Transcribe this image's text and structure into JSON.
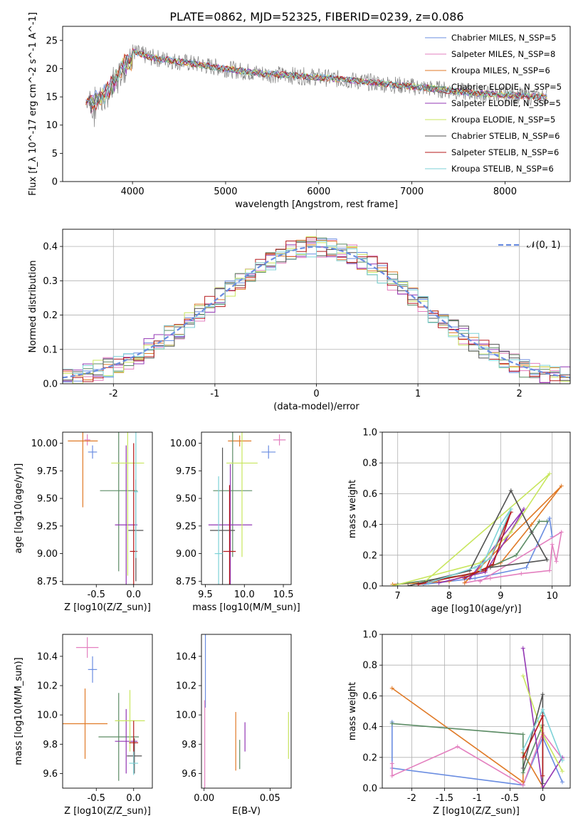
{
  "figure_title": "PLATE=0862, MJD=52325, FIBERID=0239, z=0.086",
  "series_colors": [
    "#6a8de1",
    "#e37fbf",
    "#e07a27",
    "#5c8c65",
    "#9337b4",
    "#c8e65e",
    "#525252",
    "#b5191b",
    "#7dd2d7"
  ],
  "legend_spectrum": [
    "Chabrier MILES, N_SSP=5",
    "Salpeter MILES, N_SSP=8",
    "Kroupa MILES, N_SSP=6",
    "Chabrier ELODIE, N_SSP=5",
    "Salpeter ELODIE, N_SSP=5",
    "Kroupa ELODIE, N_SSP=5",
    "Chabrier STELIB, N_SSP=6",
    "Salpeter STELIB, N_SSP=6",
    "Kroupa STELIB, N_SSP=6"
  ],
  "legend_hist": "𝒩(0, 1)",
  "chart_data": [
    {
      "type": "line",
      "title": "PLATE=0862, MJD=52325, FIBERID=0239, z=0.086",
      "xlabel": "wavelength [Angstrom, rest frame]",
      "ylabel": "Flux [f_λ 10^-17 erg cm^-2 s^-1 A^-1]",
      "xlim": [
        3250,
        8700
      ],
      "ylim": [
        0,
        27.5
      ],
      "xticks": [
        4000,
        5000,
        6000,
        7000,
        8000
      ],
      "yticks": [
        0,
        5,
        10,
        15,
        20,
        25
      ],
      "data_continuum": {
        "x": [
          3500,
          3600,
          3700,
          3800,
          3900,
          4000,
          4100,
          4200,
          4400,
          4600,
          4800,
          5000,
          5200,
          5500,
          5800,
          6000,
          6300,
          6600,
          6900,
          7200,
          7500,
          7800,
          8100,
          8400
        ],
        "y": [
          14,
          16,
          17,
          19,
          22,
          23,
          22.5,
          22,
          21.5,
          21,
          20.5,
          20,
          19.5,
          19,
          18.7,
          18.5,
          18,
          17.5,
          17,
          16.5,
          16,
          15.5,
          15.3,
          15
        ]
      },
      "grid": false,
      "legend": "top-right"
    },
    {
      "type": "line",
      "xlabel": "(data-model)/error",
      "ylabel": "Normed distribution",
      "xlim": [
        -2.5,
        2.5
      ],
      "ylim": [
        0,
        0.45
      ],
      "xticks": [
        -2,
        -1,
        0,
        1,
        2
      ],
      "yticks": [
        0.0,
        0.1,
        0.2,
        0.3,
        0.4
      ],
      "normal_curve": {
        "mean": 0,
        "sigma": 1
      },
      "grid": true,
      "legend": "top-right"
    },
    {
      "type": "scatter",
      "xlabel": "Z [log10(Z/Z_sun)]",
      "ylabel": "age [log10(age/yr)]",
      "xlim": [
        -0.95,
        0.25
      ],
      "ylim": [
        8.72,
        10.1
      ],
      "xticks": [
        -0.5,
        0.0
      ],
      "yticks": [
        8.75,
        9.0,
        9.25,
        9.5,
        9.75,
        10.0
      ],
      "points": [
        {
          "x": -0.55,
          "y": 9.92,
          "xerr": 0.06,
          "yerr": 0.06
        },
        {
          "x": -0.62,
          "y": 10.03,
          "xerr": 0.04,
          "yerr": 0.05
        },
        {
          "x": -0.68,
          "y": 10.02,
          "xerr": 0.2,
          "yerr": 0.6
        },
        {
          "x": -0.2,
          "y": 9.57,
          "xerr": 0.25,
          "yerr": 0.73
        },
        {
          "x": -0.1,
          "y": 9.26,
          "xerr": 0.15,
          "yerr": 0.72
        },
        {
          "x": -0.08,
          "y": 9.82,
          "xerr": 0.22,
          "yerr": 1.02
        },
        {
          "x": 0.03,
          "y": 9.21,
          "xerr": 0.1,
          "yerr": 0.46
        },
        {
          "x": 0.0,
          "y": 9.02,
          "xerr": 0.05,
          "yerr": 0.98
        },
        {
          "x": 0.03,
          "y": 9.56,
          "xerr": 0.03,
          "yerr": 0.6
        }
      ]
    },
    {
      "type": "scatter",
      "xlabel": "mass [log10(M/M_sun)]",
      "ylabel": "",
      "xlim": [
        9.45,
        10.6
      ],
      "ylim": [
        8.72,
        10.1
      ],
      "xticks": [
        9.5,
        10.0,
        10.5
      ],
      "yticks": [
        8.75,
        9.0,
        9.25,
        9.5,
        9.75,
        10.0
      ],
      "points": [
        {
          "x": 10.31,
          "y": 9.92,
          "xerr": 0.09,
          "yerr": 0.06
        },
        {
          "x": 10.45,
          "y": 10.03,
          "xerr": 0.08,
          "yerr": 0.05
        },
        {
          "x": 9.94,
          "y": 10.02,
          "xerr": 0.15,
          "yerr": 0.05
        },
        {
          "x": 9.85,
          "y": 9.57,
          "xerr": 0.25,
          "yerr": 0.6
        },
        {
          "x": 9.82,
          "y": 9.26,
          "xerr": 0.28,
          "yerr": 0.55
        },
        {
          "x": 9.97,
          "y": 9.82,
          "xerr": 0.2,
          "yerr": 0.85
        },
        {
          "x": 9.72,
          "y": 9.21,
          "xerr": 0.16,
          "yerr": 0.75
        },
        {
          "x": 9.81,
          "y": 9.02,
          "xerr": 0.08,
          "yerr": 0.6
        },
        {
          "x": 9.67,
          "y": 9.0,
          "xerr": 0.05,
          "yerr": 0.7
        }
      ]
    },
    {
      "type": "line",
      "xlabel": "age [log10(age/yr)]",
      "ylabel": "mass weight",
      "xlim": [
        6.7,
        10.35
      ],
      "ylim": [
        0,
        1.0
      ],
      "xticks": [
        7,
        8,
        9,
        10
      ],
      "yticks": [
        0.0,
        0.2,
        0.4,
        0.6,
        0.8,
        1.0
      ],
      "grid": true,
      "series": [
        {
          "values": [
            [
              7.5,
              0.01
            ],
            [
              8.5,
              0.05
            ],
            [
              9.5,
              0.12
            ],
            [
              9.95,
              0.44
            ],
            [
              10.0,
              0.32
            ]
          ]
        },
        {
          "values": [
            [
              8.3,
              0.02
            ],
            [
              8.8,
              0.05
            ],
            [
              9.4,
              0.08
            ],
            [
              9.95,
              0.1
            ],
            [
              10.0,
              0.27
            ],
            [
              10.08,
              0.16
            ],
            [
              10.18,
              0.35
            ],
            [
              8.6,
              0.03
            ]
          ]
        },
        {
          "values": [
            [
              6.9,
              0.01
            ],
            [
              8.0,
              0.03
            ],
            [
              9.0,
              0.15
            ],
            [
              9.6,
              0.4
            ],
            [
              10.18,
              0.65
            ],
            [
              8.3,
              0.02
            ]
          ]
        },
        {
          "values": [
            [
              7.0,
              0.01
            ],
            [
              8.5,
              0.08
            ],
            [
              9.3,
              0.2
            ],
            [
              9.75,
              0.42
            ],
            [
              9.9,
              0.42
            ]
          ]
        },
        {
          "values": [
            [
              7.8,
              0.02
            ],
            [
              8.7,
              0.09
            ],
            [
              9.1,
              0.3
            ],
            [
              9.45,
              0.5
            ],
            [
              8.4,
              0.05
            ]
          ]
        },
        {
          "values": [
            [
              6.9,
              0.0
            ],
            [
              8.6,
              0.15
            ],
            [
              9.2,
              0.35
            ],
            [
              9.95,
              0.73
            ],
            [
              7.5,
              0.02
            ]
          ]
        },
        {
          "values": [
            [
              7.2,
              0.0
            ],
            [
              8.4,
              0.1
            ],
            [
              9.2,
              0.62
            ],
            [
              9.6,
              0.35
            ],
            [
              9.9,
              0.17
            ],
            [
              8.8,
              0.12
            ]
          ]
        },
        {
          "values": [
            [
              7.4,
              0.01
            ],
            [
              8.7,
              0.1
            ],
            [
              9.2,
              0.48
            ],
            [
              8.85,
              0.14
            ],
            [
              8.3,
              0.05
            ]
          ]
        },
        {
          "values": [
            [
              7.6,
              0.02
            ],
            [
              8.5,
              0.12
            ],
            [
              8.8,
              0.18
            ],
            [
              9.2,
              0.5
            ],
            [
              9.0,
              0.4
            ],
            [
              8.6,
              0.1
            ]
          ]
        }
      ]
    },
    {
      "type": "scatter",
      "xlabel": "Z [log10(Z/Z_sun)]",
      "ylabel": "mass [log10(M/M_sun)]",
      "xlim": [
        -0.95,
        0.25
      ],
      "ylim": [
        9.5,
        10.55
      ],
      "xticks": [
        -0.5,
        0.0
      ],
      "yticks": [
        9.6,
        9.8,
        10.0,
        10.2,
        10.4
      ],
      "points": [
        {
          "x": -0.55,
          "y": 10.31,
          "xerr": 0.06,
          "yerr": 0.09
        },
        {
          "x": -0.62,
          "y": 10.46,
          "xerr": 0.15,
          "yerr": 0.07
        },
        {
          "x": -0.65,
          "y": 9.94,
          "xerr": 0.3,
          "yerr": 0.24
        },
        {
          "x": -0.2,
          "y": 9.85,
          "xerr": 0.27,
          "yerr": 0.3
        },
        {
          "x": -0.1,
          "y": 9.82,
          "xerr": 0.15,
          "yerr": 0.22
        },
        {
          "x": -0.05,
          "y": 9.96,
          "xerr": 0.2,
          "yerr": 0.21
        },
        {
          "x": 0.01,
          "y": 9.72,
          "xerr": 0.1,
          "yerr": 0.12
        },
        {
          "x": 0.0,
          "y": 9.81,
          "xerr": 0.06,
          "yerr": 0.15
        },
        {
          "x": 0.0,
          "y": 9.67,
          "xerr": 0.06,
          "yerr": 0.08
        }
      ]
    },
    {
      "type": "scatter",
      "xlabel": "E(B-V)",
      "ylabel": "",
      "xlim": [
        -0.002,
        0.066
      ],
      "ylim": [
        9.5,
        10.55
      ],
      "xticks": [
        0.0,
        0.05
      ],
      "yticks": [
        9.6,
        9.8,
        10.0,
        10.2,
        10.4
      ],
      "points": [
        {
          "x": 0.001,
          "y": 10.3,
          "xerr": 0.0,
          "yerr": 0.25
        },
        {
          "x": 0.0005,
          "y": 9.8,
          "xerr": 0.0,
          "yerr": 0.3
        },
        {
          "x": 0.024,
          "y": 9.82,
          "xerr": 0.0,
          "yerr": 0.2
        },
        {
          "x": 0.027,
          "y": 9.73,
          "xerr": 0.0,
          "yerr": 0.1
        },
        {
          "x": 0.031,
          "y": 9.85,
          "xerr": 0.0,
          "yerr": 0.1
        },
        {
          "x": 0.064,
          "y": 9.86,
          "xerr": 0.0,
          "yerr": 0.16
        }
      ]
    },
    {
      "type": "line",
      "xlabel": "Z [log10(Z/Z_sun)]",
      "ylabel": "mass weight",
      "xlim": [
        -2.45,
        0.42
      ],
      "ylim": [
        0,
        1.0
      ],
      "xticks": [
        -2.0,
        -1.5,
        -1.0,
        -0.5,
        0.0
      ],
      "yticks": [
        0.0,
        0.2,
        0.4,
        0.6,
        0.8,
        1.0
      ],
      "grid": true,
      "series": [
        {
          "values": [
            [
              -2.3,
              0.43
            ],
            [
              -2.3,
              0.13
            ],
            [
              -0.3,
              0.02
            ],
            [
              0.0,
              0.33
            ],
            [
              0.3,
              0.04
            ]
          ]
        },
        {
          "values": [
            [
              -2.3,
              0.16
            ],
            [
              -2.3,
              0.08
            ],
            [
              -1.3,
              0.27
            ],
            [
              -0.3,
              0.02
            ],
            [
              0.0,
              0.36
            ],
            [
              0.3,
              0.19
            ]
          ]
        },
        {
          "values": [
            [
              -2.3,
              0.65
            ],
            [
              -0.3,
              0.04
            ],
            [
              -0.3,
              0.23
            ],
            [
              0.0,
              0.01
            ]
          ]
        },
        {
          "values": [
            [
              -2.3,
              0.42
            ],
            [
              -0.3,
              0.35
            ],
            [
              -0.3,
              0.1
            ],
            [
              0.0,
              0.41
            ]
          ]
        },
        {
          "values": [
            [
              -0.3,
              0.91
            ],
            [
              0.0,
              0.0
            ],
            [
              0.3,
              0.2
            ]
          ]
        },
        {
          "values": [
            [
              -0.3,
              0.73
            ],
            [
              0.0,
              0.35
            ],
            [
              0.3,
              0.11
            ]
          ]
        },
        {
          "values": [
            [
              -0.3,
              0.13
            ],
            [
              0.0,
              0.61
            ],
            [
              0.0,
              0.03
            ]
          ]
        },
        {
          "values": [
            [
              -0.3,
              0.2
            ],
            [
              0.0,
              0.47
            ],
            [
              0.0,
              0.08
            ]
          ]
        },
        {
          "values": [
            [
              -0.3,
              0.25
            ],
            [
              0.0,
              0.51
            ],
            [
              0.3,
              0.18
            ]
          ]
        }
      ]
    }
  ]
}
